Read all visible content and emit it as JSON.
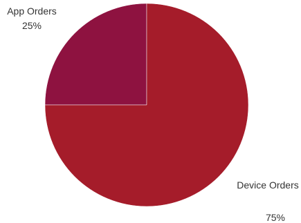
{
  "chart_data": {
    "type": "pie",
    "slices": [
      {
        "label": "App Orders",
        "value": 25,
        "value_label": "25%",
        "color": "#8e1240"
      },
      {
        "label": "Device Orders",
        "value": 75,
        "value_label": "75%",
        "color": "#a51c2a"
      }
    ],
    "title": "",
    "legend": "none"
  }
}
